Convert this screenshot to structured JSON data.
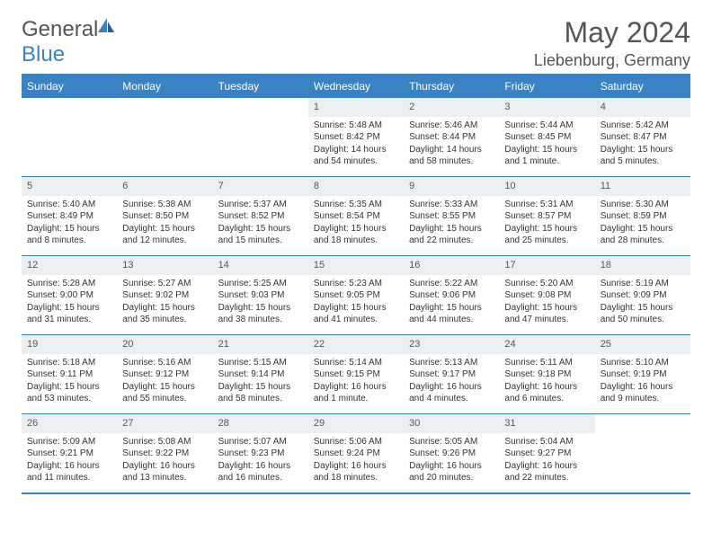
{
  "brand": {
    "part1": "General",
    "part2": "Blue"
  },
  "title": "May 2024",
  "location": "Liebenburg, Germany",
  "colors": {
    "accent": "#3b82c4",
    "header_bg": "#eceff1",
    "text": "#333333",
    "muted": "#555555",
    "background": "#ffffff"
  },
  "typography": {
    "base_font": "Arial",
    "title_size_pt": 24,
    "cell_size_pt": 8
  },
  "dayNames": [
    "Sunday",
    "Monday",
    "Tuesday",
    "Wednesday",
    "Thursday",
    "Friday",
    "Saturday"
  ],
  "weeks": [
    [
      null,
      null,
      null,
      {
        "n": "1",
        "sr": "Sunrise: 5:48 AM",
        "ss": "Sunset: 8:42 PM",
        "dl": "Daylight: 14 hours and 54 minutes."
      },
      {
        "n": "2",
        "sr": "Sunrise: 5:46 AM",
        "ss": "Sunset: 8:44 PM",
        "dl": "Daylight: 14 hours and 58 minutes."
      },
      {
        "n": "3",
        "sr": "Sunrise: 5:44 AM",
        "ss": "Sunset: 8:45 PM",
        "dl": "Daylight: 15 hours and 1 minute."
      },
      {
        "n": "4",
        "sr": "Sunrise: 5:42 AM",
        "ss": "Sunset: 8:47 PM",
        "dl": "Daylight: 15 hours and 5 minutes."
      }
    ],
    [
      {
        "n": "5",
        "sr": "Sunrise: 5:40 AM",
        "ss": "Sunset: 8:49 PM",
        "dl": "Daylight: 15 hours and 8 minutes."
      },
      {
        "n": "6",
        "sr": "Sunrise: 5:38 AM",
        "ss": "Sunset: 8:50 PM",
        "dl": "Daylight: 15 hours and 12 minutes."
      },
      {
        "n": "7",
        "sr": "Sunrise: 5:37 AM",
        "ss": "Sunset: 8:52 PM",
        "dl": "Daylight: 15 hours and 15 minutes."
      },
      {
        "n": "8",
        "sr": "Sunrise: 5:35 AM",
        "ss": "Sunset: 8:54 PM",
        "dl": "Daylight: 15 hours and 18 minutes."
      },
      {
        "n": "9",
        "sr": "Sunrise: 5:33 AM",
        "ss": "Sunset: 8:55 PM",
        "dl": "Daylight: 15 hours and 22 minutes."
      },
      {
        "n": "10",
        "sr": "Sunrise: 5:31 AM",
        "ss": "Sunset: 8:57 PM",
        "dl": "Daylight: 15 hours and 25 minutes."
      },
      {
        "n": "11",
        "sr": "Sunrise: 5:30 AM",
        "ss": "Sunset: 8:59 PM",
        "dl": "Daylight: 15 hours and 28 minutes."
      }
    ],
    [
      {
        "n": "12",
        "sr": "Sunrise: 5:28 AM",
        "ss": "Sunset: 9:00 PM",
        "dl": "Daylight: 15 hours and 31 minutes."
      },
      {
        "n": "13",
        "sr": "Sunrise: 5:27 AM",
        "ss": "Sunset: 9:02 PM",
        "dl": "Daylight: 15 hours and 35 minutes."
      },
      {
        "n": "14",
        "sr": "Sunrise: 5:25 AM",
        "ss": "Sunset: 9:03 PM",
        "dl": "Daylight: 15 hours and 38 minutes."
      },
      {
        "n": "15",
        "sr": "Sunrise: 5:23 AM",
        "ss": "Sunset: 9:05 PM",
        "dl": "Daylight: 15 hours and 41 minutes."
      },
      {
        "n": "16",
        "sr": "Sunrise: 5:22 AM",
        "ss": "Sunset: 9:06 PM",
        "dl": "Daylight: 15 hours and 44 minutes."
      },
      {
        "n": "17",
        "sr": "Sunrise: 5:20 AM",
        "ss": "Sunset: 9:08 PM",
        "dl": "Daylight: 15 hours and 47 minutes."
      },
      {
        "n": "18",
        "sr": "Sunrise: 5:19 AM",
        "ss": "Sunset: 9:09 PM",
        "dl": "Daylight: 15 hours and 50 minutes."
      }
    ],
    [
      {
        "n": "19",
        "sr": "Sunrise: 5:18 AM",
        "ss": "Sunset: 9:11 PM",
        "dl": "Daylight: 15 hours and 53 minutes."
      },
      {
        "n": "20",
        "sr": "Sunrise: 5:16 AM",
        "ss": "Sunset: 9:12 PM",
        "dl": "Daylight: 15 hours and 55 minutes."
      },
      {
        "n": "21",
        "sr": "Sunrise: 5:15 AM",
        "ss": "Sunset: 9:14 PM",
        "dl": "Daylight: 15 hours and 58 minutes."
      },
      {
        "n": "22",
        "sr": "Sunrise: 5:14 AM",
        "ss": "Sunset: 9:15 PM",
        "dl": "Daylight: 16 hours and 1 minute."
      },
      {
        "n": "23",
        "sr": "Sunrise: 5:13 AM",
        "ss": "Sunset: 9:17 PM",
        "dl": "Daylight: 16 hours and 4 minutes."
      },
      {
        "n": "24",
        "sr": "Sunrise: 5:11 AM",
        "ss": "Sunset: 9:18 PM",
        "dl": "Daylight: 16 hours and 6 minutes."
      },
      {
        "n": "25",
        "sr": "Sunrise: 5:10 AM",
        "ss": "Sunset: 9:19 PM",
        "dl": "Daylight: 16 hours and 9 minutes."
      }
    ],
    [
      {
        "n": "26",
        "sr": "Sunrise: 5:09 AM",
        "ss": "Sunset: 9:21 PM",
        "dl": "Daylight: 16 hours and 11 minutes."
      },
      {
        "n": "27",
        "sr": "Sunrise: 5:08 AM",
        "ss": "Sunset: 9:22 PM",
        "dl": "Daylight: 16 hours and 13 minutes."
      },
      {
        "n": "28",
        "sr": "Sunrise: 5:07 AM",
        "ss": "Sunset: 9:23 PM",
        "dl": "Daylight: 16 hours and 16 minutes."
      },
      {
        "n": "29",
        "sr": "Sunrise: 5:06 AM",
        "ss": "Sunset: 9:24 PM",
        "dl": "Daylight: 16 hours and 18 minutes."
      },
      {
        "n": "30",
        "sr": "Sunrise: 5:05 AM",
        "ss": "Sunset: 9:26 PM",
        "dl": "Daylight: 16 hours and 20 minutes."
      },
      {
        "n": "31",
        "sr": "Sunrise: 5:04 AM",
        "ss": "Sunset: 9:27 PM",
        "dl": "Daylight: 16 hours and 22 minutes."
      },
      null
    ]
  ]
}
